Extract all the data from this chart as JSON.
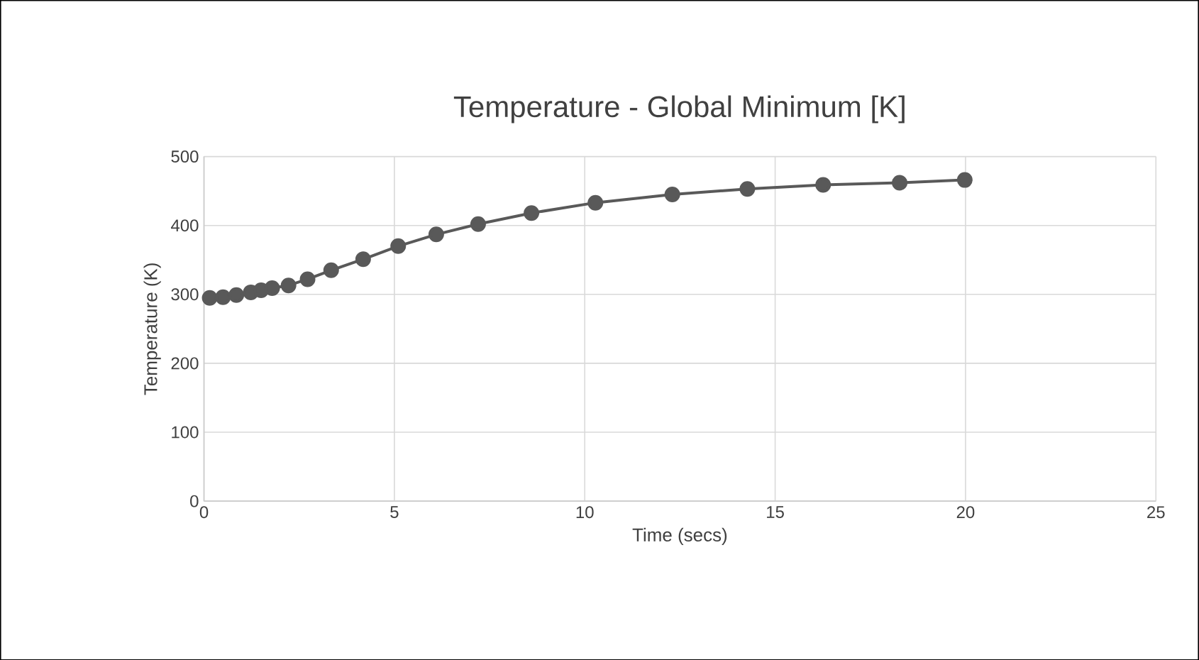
{
  "chart_data": {
    "type": "line",
    "title": "Temperature - Global Minimum [K]",
    "xlabel": "Time (secs)",
    "ylabel": "Temperature (K)",
    "x": [
      0.15,
      0.5,
      0.85,
      1.23,
      1.5,
      1.79,
      2.22,
      2.72,
      3.34,
      4.18,
      5.1,
      6.1,
      7.2,
      8.6,
      10.28,
      12.3,
      14.27,
      16.26,
      18.27,
      19.98
    ],
    "values": [
      295,
      296,
      299,
      303,
      306,
      309,
      313,
      322,
      335,
      351,
      370,
      387,
      402,
      418,
      433,
      445,
      453,
      459,
      462,
      466
    ],
    "color": "#595959",
    "marker": "circle",
    "line_style": "solid",
    "grid": true,
    "xlim": [
      0,
      25
    ],
    "xticks": [
      0,
      5,
      10,
      15,
      20,
      25
    ],
    "ylim": [
      0,
      500
    ],
    "yticks": [
      0,
      100,
      200,
      300,
      400,
      500
    ]
  }
}
